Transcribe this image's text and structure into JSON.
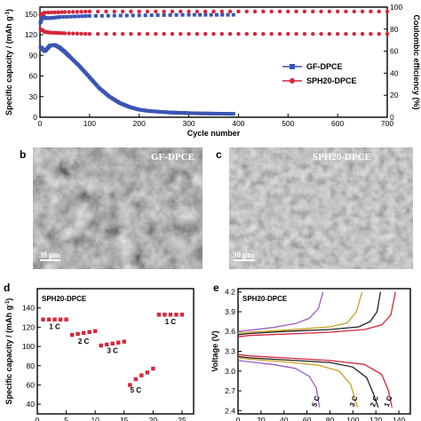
{
  "panels": {
    "a": "a",
    "b": "b",
    "c": "c",
    "d": "d",
    "e": "e"
  },
  "chart_data": [
    {
      "panel": "a",
      "type": "scatter",
      "xlabel": "Cycle number",
      "ylabel": "Specific capacity / (mAh g",
      "ylabel_sup": "-1",
      "ylabel_end": ")",
      "y2label": "Coulombic efficiency (%)",
      "xlim": [
        0,
        700
      ],
      "ylim": [
        0,
        160
      ],
      "y2lim": [
        0,
        100
      ],
      "xticks": [
        "0",
        "100",
        "200",
        "300",
        "400",
        "500",
        "600",
        "700"
      ],
      "yticks": [
        "0",
        "30",
        "60",
        "90",
        "120",
        "150"
      ],
      "y2ticks": [
        "0",
        "20",
        "40",
        "60",
        "80",
        "100"
      ],
      "series": [
        {
          "name": "GF-DPCE",
          "color": "#3a55b4",
          "marker": "square",
          "capacity": {
            "x": [
              1,
              10,
              20,
              30,
              40,
              50,
              60,
              80,
              100,
              120,
              140,
              160,
              180,
              200,
              220,
              240,
              260,
              280,
              300,
              330,
              360,
              390
            ],
            "y": [
              102,
              96,
              104,
              105,
              101,
              95,
              88,
              74,
              58,
              42,
              30,
              21,
              15,
              11,
              9,
              8,
              7,
              6.5,
              6,
              5.5,
              5.2,
              5
            ]
          },
          "efficiency": {
            "x": [
              1,
              5,
              10,
              20,
              40,
              100,
              200,
              300,
              390
            ],
            "y": [
              86,
              92,
              90,
              90,
              91,
              92,
              92.5,
              93,
              93
            ]
          }
        },
        {
          "name": "SPH20-DPCE",
          "color": "#d6263a",
          "marker": "circle",
          "capacity": {
            "x": [
              1,
              10,
              20,
              50,
              100,
              200,
              300,
              400,
              500,
              600,
              700
            ],
            "y": [
              128,
              124,
              123,
              122,
              121,
              121,
              121,
              121,
              121,
              121,
              121
            ]
          },
          "efficiency": {
            "x": [
              1,
              10,
              50,
              100,
              200,
              300,
              400,
              500,
              600,
              700
            ],
            "y": [
              93,
              95,
              95.5,
              96,
              96,
              96,
              96,
              96,
              96,
              96
            ]
          }
        }
      ]
    },
    {
      "panel": "d",
      "type": "scatter",
      "title": "SPH20-DPCE",
      "xlabel": "",
      "ylabel": "Specific capacity / (mAh g",
      "ylabel_sup": "-1",
      "ylabel_end": ")",
      "xlim": [
        0,
        27
      ],
      "ylim": [
        30,
        160
      ],
      "xticks": [
        "0",
        "5",
        "10",
        "15",
        "20",
        "25"
      ],
      "yticks": [
        "40",
        "60",
        "80",
        "100",
        "120",
        "140"
      ],
      "color": "#d6263a",
      "x": [
        1,
        2,
        3,
        4,
        5,
        6,
        7,
        8,
        9,
        10,
        11,
        12,
        13,
        14,
        15,
        16,
        17,
        18,
        19,
        20,
        21,
        22,
        23,
        24,
        25
      ],
      "y": [
        128,
        128,
        128,
        128,
        128,
        112,
        113,
        114,
        115,
        116,
        101,
        102,
        103,
        104,
        105,
        60,
        66,
        70,
        73,
        77,
        133,
        133,
        133,
        133,
        133
      ],
      "annotations": [
        "1 C",
        "2 C",
        "3 C",
        "5 C",
        "1 C"
      ]
    },
    {
      "panel": "e",
      "type": "line",
      "title": "SPH20-DPCE",
      "xlabel": "",
      "ylabel": "Voltage (V)",
      "xlim": [
        0,
        150
      ],
      "ylim": [
        2.35,
        4.25
      ],
      "xticks": [
        "0",
        "20",
        "40",
        "60",
        "80",
        "100",
        "120",
        "140"
      ],
      "yticks": [
        "2.4",
        "2.7",
        "3.0",
        "3.3",
        "3.6",
        "3.9",
        "4.2"
      ],
      "series": [
        {
          "name": "1 C",
          "color": "#d6263a",
          "charge": {
            "x": [
              0,
              10,
              40,
              80,
              110,
              125,
              133,
              137
            ],
            "y": [
              3.52,
              3.54,
              3.56,
              3.59,
              3.63,
              3.7,
              3.85,
              4.2
            ]
          },
          "discharge": {
            "x": [
              0,
              10,
              40,
              80,
              110,
              125,
              131,
              134
            ],
            "y": [
              3.25,
              3.23,
              3.2,
              3.16,
              3.1,
              2.95,
              2.7,
              2.45
            ]
          }
        },
        {
          "name": "2 C",
          "color": "#222222",
          "charge": {
            "x": [
              0,
              10,
              40,
              80,
              105,
              115,
              121,
              124
            ],
            "y": [
              3.55,
              3.57,
              3.6,
              3.63,
              3.67,
              3.75,
              3.9,
              4.2
            ]
          },
          "discharge": {
            "x": [
              0,
              10,
              40,
              80,
              100,
              112,
              118,
              122
            ],
            "y": [
              3.22,
              3.2,
              3.17,
              3.13,
              3.06,
              2.9,
              2.65,
              2.45
            ]
          }
        },
        {
          "name": "3 C",
          "color": "#c8a020",
          "charge": {
            "x": [
              0,
              10,
              40,
              80,
              95,
              103,
              108
            ],
            "y": [
              3.57,
              3.59,
              3.62,
              3.67,
              3.73,
              3.9,
              4.2
            ]
          },
          "discharge": {
            "x": [
              0,
              10,
              40,
              70,
              88,
              98,
              104
            ],
            "y": [
              3.2,
              3.18,
              3.14,
              3.09,
              3.0,
              2.8,
              2.45
            ]
          }
        },
        {
          "name": "5 C",
          "color": "#9a5cc8",
          "charge": {
            "x": [
              0,
              10,
              30,
              50,
              62,
              70,
              74
            ],
            "y": [
              3.6,
              3.62,
              3.66,
              3.72,
              3.8,
              3.95,
              4.2
            ]
          },
          "discharge": {
            "x": [
              0,
              10,
              30,
              50,
              62,
              68,
              71
            ],
            "y": [
              3.16,
              3.14,
              3.1,
              3.04,
              2.92,
              2.75,
              2.45
            ]
          }
        }
      ]
    }
  ],
  "sem": {
    "b": {
      "label": "GF-DPCE",
      "scale": "30 μm"
    },
    "c": {
      "label": "SPH20-DPCE",
      "scale": "30 μm"
    }
  }
}
